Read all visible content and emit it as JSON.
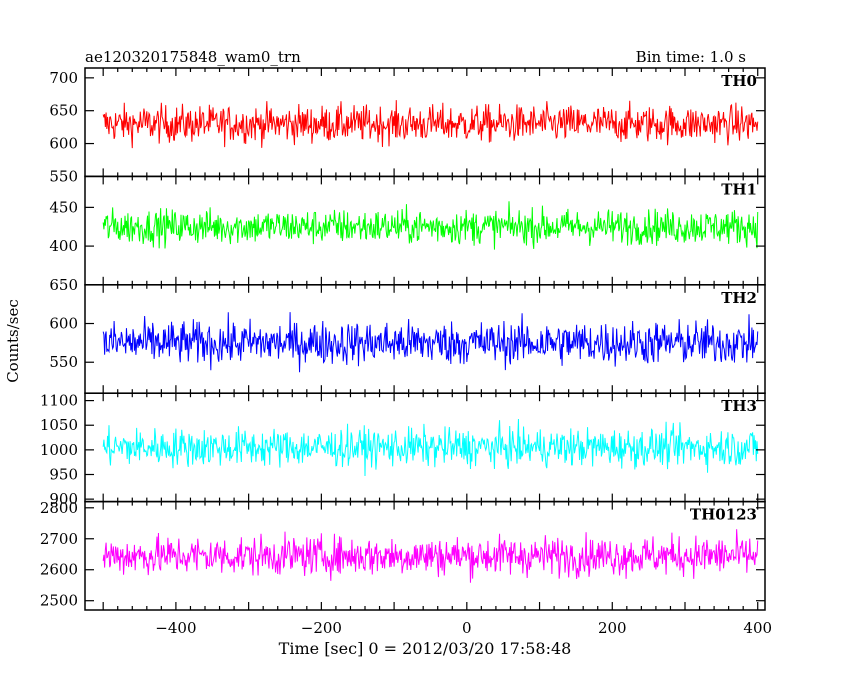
{
  "header": {
    "left_title": "ae120320175848_wam0_trn",
    "right_title": "Bin time: 1.0 s"
  },
  "chart_data": {
    "type": "line",
    "xlabel": "Time [sec] 0 = 2012/03/20 17:58:48",
    "ylabel": "Counts/sec",
    "xlim": [
      -525,
      410
    ],
    "x_ticks": [
      -400,
      -200,
      0,
      200,
      400
    ],
    "x_tick_labels": [
      "−400",
      "−200",
      "0",
      "200",
      "400"
    ],
    "x_range": [
      -500,
      400
    ],
    "bin_seconds": 1.0,
    "panels": [
      {
        "name": "TH0",
        "color": "#ff0000",
        "ylim": [
          550,
          715
        ],
        "yticks": [
          550,
          600,
          650,
          700
        ],
        "mean": 630,
        "amplitude": 40
      },
      {
        "name": "TH1",
        "color": "#00ff00",
        "ylim": [
          350,
          490
        ],
        "yticks": [
          400,
          450
        ],
        "mean": 425,
        "amplitude": 32
      },
      {
        "name": "TH2",
        "color": "#0000ff",
        "ylim": [
          510,
          650
        ],
        "yticks": [
          550,
          600,
          650
        ],
        "mean": 575,
        "amplitude": 40
      },
      {
        "name": "TH3",
        "color": "#00ffff",
        "ylim": [
          895,
          1115
        ],
        "yticks": [
          900,
          950,
          1000,
          1050,
          1100
        ],
        "mean": 1005,
        "amplitude": 55
      },
      {
        "name": "TH0123",
        "color": "#ff00ff",
        "ylim": [
          2470,
          2820
        ],
        "yticks": [
          2500,
          2600,
          2700,
          2800
        ],
        "mean": 2645,
        "amplitude": 90
      }
    ]
  }
}
